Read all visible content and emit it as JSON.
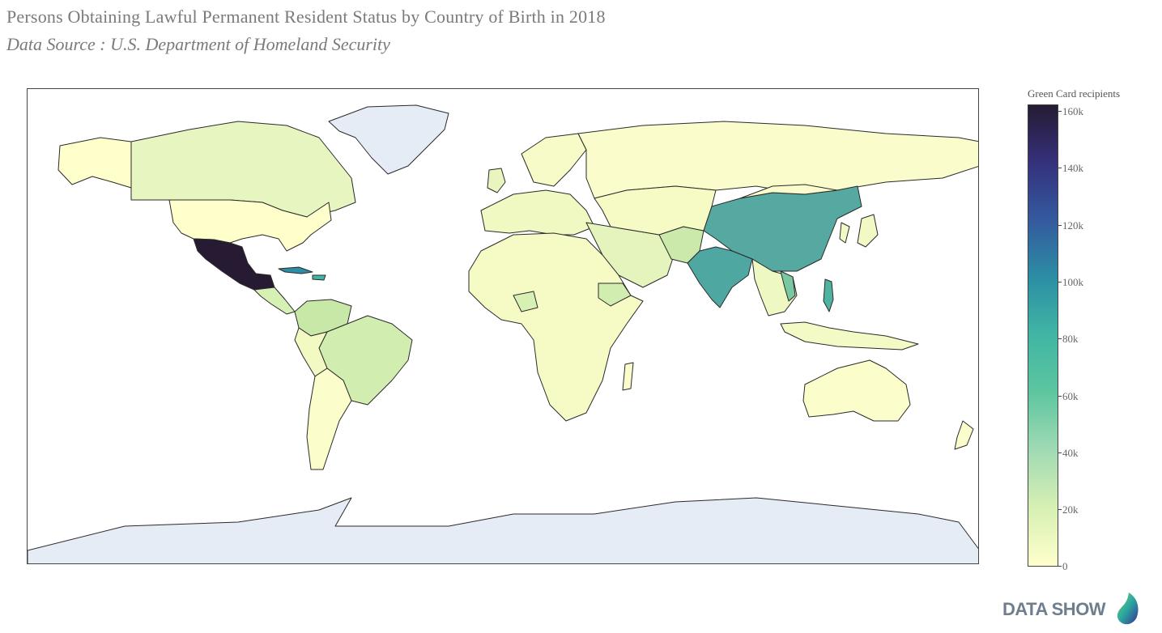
{
  "title": "Persons Obtaining Lawful Permanent Resident Status by Country of Birth in 2018",
  "subtitle": "Data Source : U.S. Department of Homeland Security",
  "colorbar": {
    "title": "Green Card recipients",
    "ticks": [
      "0",
      "20k",
      "40k",
      "60k",
      "80k",
      "100k",
      "120k",
      "140k",
      "160k"
    ],
    "range": [
      0,
      161000
    ]
  },
  "logo_text": "DATA SHOW",
  "map_data": {
    "type": "choropleth",
    "metric": "Green Card recipients",
    "colors": {
      "no_data": "#e5ecf6",
      "low": "#ffffcc",
      "high": "#261b32",
      "border": "#2a2a2a"
    },
    "highlighted": [
      {
        "country": "Mexico",
        "approx_value": 161000
      },
      {
        "country": "China",
        "approx_value": 65000
      },
      {
        "country": "India",
        "approx_value": 59000
      },
      {
        "country": "Cuba",
        "approx_value": 76000
      },
      {
        "country": "Dominican Republic",
        "approx_value": 57000
      },
      {
        "country": "Philippines",
        "approx_value": 47000
      },
      {
        "country": "Vietnam",
        "approx_value": 33000
      }
    ]
  }
}
